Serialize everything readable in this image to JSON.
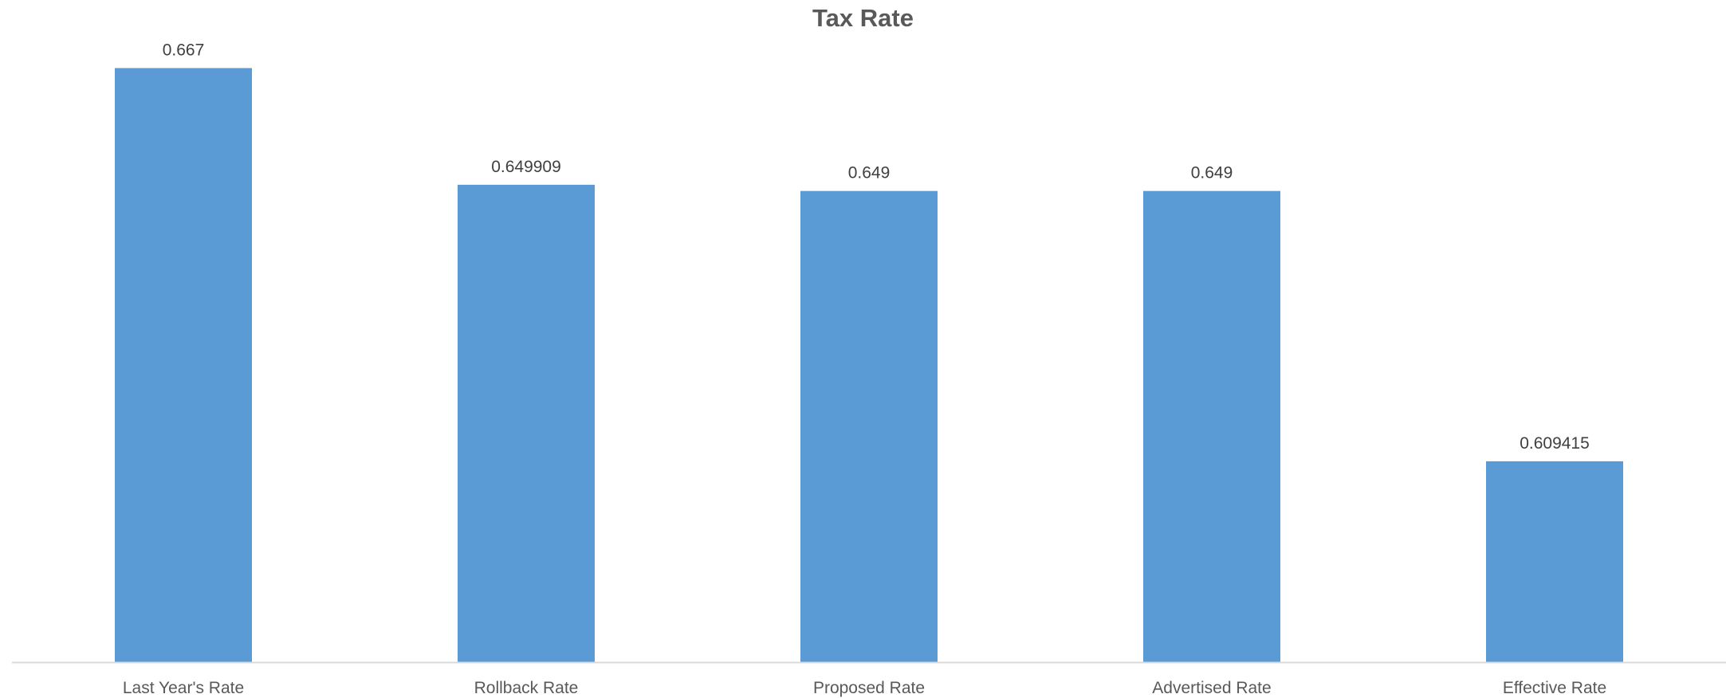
{
  "chart_data": {
    "type": "bar",
    "title": "Tax Rate",
    "xlabel": "",
    "ylabel": "",
    "categories": [
      "Last Year's Rate",
      "Rollback Rate",
      "Proposed Rate",
      "Advertised Rate",
      "Effective Rate"
    ],
    "values": [
      0.667,
      0.649909,
      0.649,
      0.649,
      0.609415
    ],
    "data_labels": [
      "0.667",
      "0.649909",
      "0.649",
      "0.649",
      "0.609415"
    ],
    "ylim": [
      0.58,
      0.673
    ],
    "grid": false,
    "legend": "none",
    "colors": {
      "bar": "#5B9BD5",
      "axis": "#D9D9D9",
      "text": "#404040",
      "title": "#595959"
    }
  }
}
